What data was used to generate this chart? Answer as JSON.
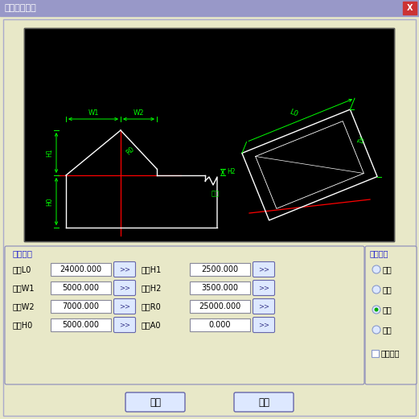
{
  "title": "「微派建筑」",
  "bg_color": "#e8e8c8",
  "title_bar_color": "#9898c8",
  "canvas_bg": "#000000",
  "canvas_fg": "#00ff00",
  "canvas_white": "#ffffff",
  "canvas_red": "#ff0000",
  "label_color": "#2222cc",
  "param_section_label": "参数设置",
  "corner_section_label": "线角组合",
  "params_left": [
    {
      "label": "脊长L0",
      "value": "24000.000"
    },
    {
      "label": "脊导W1",
      "value": "5000.000"
    },
    {
      "label": "脊导W2",
      "value": "7000.000"
    },
    {
      "label": "房高H0",
      "value": "5000.000"
    }
  ],
  "params_right": [
    {
      "label": "脊高H1",
      "value": "2500.000"
    },
    {
      "label": "脊高H2",
      "value": "3500.000"
    },
    {
      "label": "半径R0",
      "value": "25000.000"
    },
    {
      "label": "角度A0",
      "value": "0.000"
    }
  ],
  "radio_options": [
    "小小",
    "大大",
    "小大",
    "大小"
  ],
  "radio_selected": 2,
  "checkbox_label": "实体合并",
  "btn_ok": "确定",
  "btn_cancel": "取消"
}
